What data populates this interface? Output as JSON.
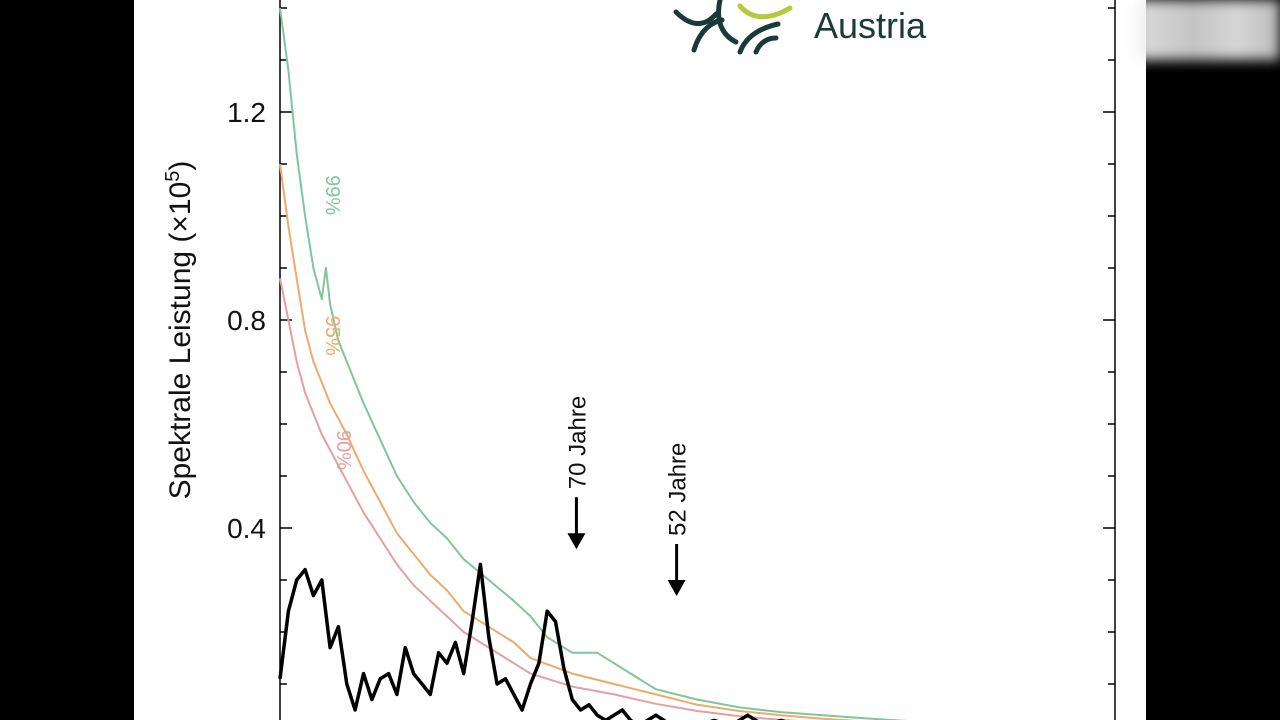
{
  "brand": {
    "name": "Austria",
    "text_color": "#1a3a3a",
    "accent_color": "#b6c93a"
  },
  "colors": {
    "background": "#000000",
    "panel": "#ffffff",
    "signal": "#000000",
    "p99": "#7fc69a",
    "p95": "#eeaa6e",
    "p90": "#e3a0a0"
  },
  "chart_data": {
    "type": "line",
    "ylabel": "Spektrale Leistung (×10⁵)",
    "ylabel_parts": {
      "base": "Spektrale Leistung (×10",
      "sup": "5",
      "end": ")"
    },
    "ylim": [
      0,
      1.4
    ],
    "xlim": [
      0,
      1
    ],
    "yticks": [
      0.4,
      0.8,
      1.2
    ],
    "ytick_labels": [
      "0.4",
      "0.8",
      "1.2"
    ],
    "grid": false,
    "series": [
      {
        "name": "99%",
        "color": "#7fc69a",
        "x": [
          0,
          0.01,
          0.02,
          0.03,
          0.04,
          0.05,
          0.055,
          0.06,
          0.07,
          0.08,
          0.1,
          0.12,
          0.14,
          0.16,
          0.18,
          0.2,
          0.22,
          0.25,
          0.28,
          0.3,
          0.32,
          0.35,
          0.38,
          0.4,
          0.42,
          0.45,
          0.5,
          0.55,
          0.6,
          0.65,
          0.7,
          0.75,
          0.8,
          0.85,
          0.9,
          0.95,
          1.0
        ],
        "y": [
          1.4,
          1.28,
          1.12,
          1.0,
          0.9,
          0.84,
          0.9,
          0.83,
          0.76,
          0.72,
          0.64,
          0.57,
          0.5,
          0.45,
          0.41,
          0.38,
          0.34,
          0.3,
          0.26,
          0.23,
          0.19,
          0.16,
          0.16,
          0.14,
          0.12,
          0.09,
          0.07,
          0.055,
          0.046,
          0.04,
          0.034,
          0.029,
          0.024,
          0.02,
          0.016,
          0.012,
          0.008
        ]
      },
      {
        "name": "95%",
        "color": "#eeaa6e",
        "x": [
          0,
          0.01,
          0.02,
          0.03,
          0.04,
          0.05,
          0.06,
          0.08,
          0.1,
          0.12,
          0.14,
          0.16,
          0.18,
          0.2,
          0.22,
          0.25,
          0.28,
          0.3,
          0.35,
          0.4,
          0.45,
          0.5,
          0.55,
          0.6,
          0.65,
          0.7,
          0.75,
          0.8,
          0.85,
          0.9,
          0.95,
          1.0
        ],
        "y": [
          1.1,
          0.98,
          0.88,
          0.78,
          0.72,
          0.68,
          0.64,
          0.58,
          0.51,
          0.45,
          0.39,
          0.35,
          0.31,
          0.28,
          0.24,
          0.21,
          0.18,
          0.15,
          0.12,
          0.1,
          0.08,
          0.06,
          0.048,
          0.04,
          0.033,
          0.028,
          0.023,
          0.019,
          0.015,
          0.012,
          0.009,
          0.006
        ]
      },
      {
        "name": "90%",
        "color": "#e3a0a0",
        "x": [
          0,
          0.01,
          0.02,
          0.03,
          0.04,
          0.05,
          0.06,
          0.08,
          0.1,
          0.12,
          0.14,
          0.16,
          0.18,
          0.2,
          0.22,
          0.25,
          0.28,
          0.3,
          0.35,
          0.4,
          0.45,
          0.5,
          0.55,
          0.6,
          0.65,
          0.7,
          0.75,
          0.8,
          0.85,
          0.9,
          0.95,
          1.0
        ],
        "y": [
          0.88,
          0.8,
          0.72,
          0.66,
          0.62,
          0.58,
          0.55,
          0.49,
          0.43,
          0.38,
          0.33,
          0.29,
          0.26,
          0.23,
          0.2,
          0.17,
          0.14,
          0.12,
          0.095,
          0.08,
          0.062,
          0.048,
          0.038,
          0.031,
          0.026,
          0.022,
          0.018,
          0.015,
          0.012,
          0.009,
          0.007,
          0.005
        ]
      },
      {
        "name": "",
        "color": "#000000",
        "x": [
          0,
          0.01,
          0.02,
          0.03,
          0.04,
          0.05,
          0.06,
          0.07,
          0.08,
          0.09,
          0.1,
          0.11,
          0.12,
          0.13,
          0.14,
          0.15,
          0.16,
          0.17,
          0.18,
          0.19,
          0.2,
          0.21,
          0.22,
          0.23,
          0.24,
          0.25,
          0.26,
          0.27,
          0.28,
          0.29,
          0.3,
          0.31,
          0.32,
          0.33,
          0.34,
          0.35,
          0.36,
          0.37,
          0.38,
          0.39,
          0.4,
          0.41,
          0.42,
          0.43,
          0.44,
          0.45,
          0.46,
          0.47,
          0.48,
          0.5,
          0.52,
          0.54,
          0.56,
          0.58,
          0.6,
          0.62,
          0.64,
          0.66,
          0.68,
          0.7,
          0.72,
          0.74,
          0.76,
          0.78,
          0.8,
          0.82,
          0.84,
          0.86,
          0.88,
          0.9,
          0.92,
          0.94,
          0.96,
          0.98,
          1.0
        ],
        "y": [
          0.11,
          0.24,
          0.3,
          0.32,
          0.27,
          0.3,
          0.17,
          0.21,
          0.1,
          0.05,
          0.12,
          0.07,
          0.11,
          0.12,
          0.08,
          0.17,
          0.12,
          0.1,
          0.08,
          0.16,
          0.14,
          0.18,
          0.12,
          0.22,
          0.33,
          0.19,
          0.1,
          0.11,
          0.08,
          0.05,
          0.1,
          0.14,
          0.24,
          0.22,
          0.13,
          0.07,
          0.05,
          0.06,
          0.04,
          0.03,
          0.04,
          0.05,
          0.03,
          0.02,
          0.03,
          0.04,
          0.03,
          0.01,
          0.02,
          0.02,
          0.03,
          0.02,
          0.04,
          0.02,
          0.03,
          0.02,
          0.0,
          0.01,
          0.0,
          0.0,
          0.0,
          0.01,
          0.0,
          0.02,
          0.0,
          0.01,
          0.0,
          0.01,
          0.01,
          0.0,
          0.01,
          0.02,
          0.0,
          0.01,
          0.0
        ]
      }
    ],
    "series_labels": [
      "99%",
      "95%",
      "90%"
    ],
    "annotations": [
      {
        "text": "70 Jahre",
        "x": 0.355,
        "y": 0.34
      },
      {
        "text": "52 Jahre",
        "x": 0.475,
        "y": 0.25
      }
    ]
  }
}
